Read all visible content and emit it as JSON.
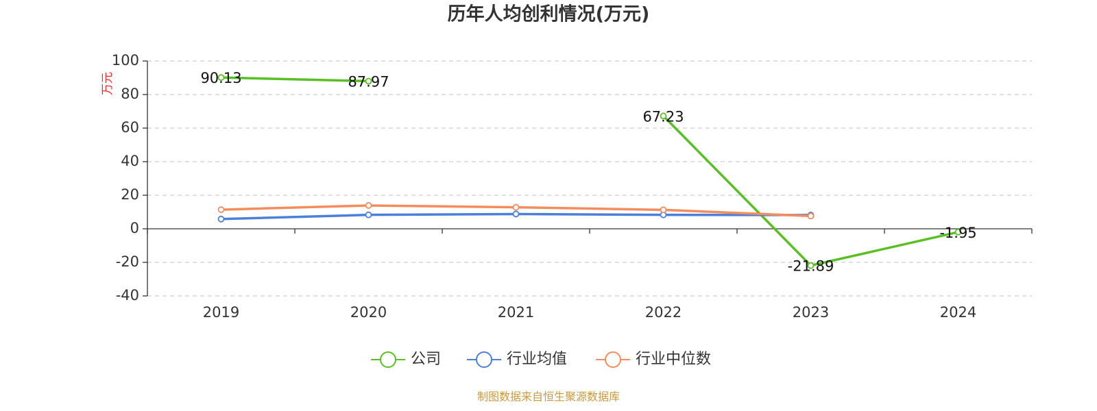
{
  "chart_data": {
    "type": "line",
    "title": "历年人均创利情况(万元)",
    "y_axis_label": "万元",
    "categories": [
      "2019",
      "2020",
      "2021",
      "2022",
      "2023",
      "2024"
    ],
    "series": [
      {
        "name": "公司",
        "color": "#58c022",
        "values": [
          90.13,
          87.97,
          null,
          67.23,
          -21.89,
          -1.95
        ]
      },
      {
        "name": "行业均值",
        "color": "#4a7fdc",
        "values": [
          5.8,
          8.3,
          8.8,
          8.3,
          8.2,
          null
        ]
      },
      {
        "name": "行业中位数",
        "color": "#f58c5c",
        "values": [
          11.4,
          13.9,
          12.8,
          11.3,
          7.6,
          null
        ]
      }
    ],
    "ylim": [
      -40,
      100
    ],
    "yticks": [
      -40,
      -20,
      0,
      20,
      40,
      60,
      80,
      100
    ],
    "grid": true,
    "legend": "bottom",
    "source": "制图数据来自恒生聚源数据库"
  }
}
